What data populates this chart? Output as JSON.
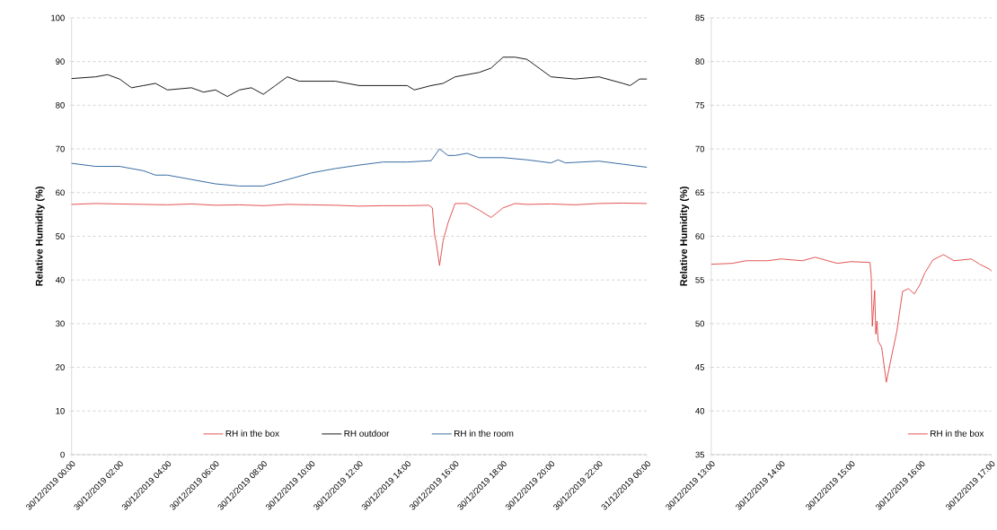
{
  "chart_data": [
    {
      "type": "line",
      "ylabel": "Relative Humidity  (%)",
      "xlim": [
        "2019-12-30T00:00",
        "2019-12-31T00:00"
      ],
      "ylim": [
        0,
        100
      ],
      "grid": "y",
      "legend": "bottom",
      "line_style": "solid",
      "marker": "none",
      "xticks": [
        {
          "value": "2019-12-30T00:00",
          "label": "30/12/2019 00:00"
        },
        {
          "value": "2019-12-30T02:00",
          "label": "30/12/2019 02:00"
        },
        {
          "value": "2019-12-30T04:00",
          "label": "30/12/2019 04:00"
        },
        {
          "value": "2019-12-30T06:00",
          "label": "30/12/2019 06:00"
        },
        {
          "value": "2019-12-30T08:00",
          "label": "30/12/2019 08:00"
        },
        {
          "value": "2019-12-30T10:00",
          "label": "30/12/2019 10:00"
        },
        {
          "value": "2019-12-30T12:00",
          "label": "30/12/2019 12:00"
        },
        {
          "value": "2019-12-30T14:00",
          "label": "30/12/2019 14:00"
        },
        {
          "value": "2019-12-30T16:00",
          "label": "30/12/2019 16:00"
        },
        {
          "value": "2019-12-30T18:00",
          "label": "30/12/2019 18:00"
        },
        {
          "value": "2019-12-30T20:00",
          "label": "30/12/2019 20:00"
        },
        {
          "value": "2019-12-30T22:00",
          "label": "30/12/2019 22:00"
        },
        {
          "value": "2019-12-31T00:00",
          "label": "31/12/2019 00:00"
        }
      ],
      "yticks": [
        0,
        10,
        20,
        30,
        40,
        50,
        60,
        70,
        80,
        90,
        100
      ],
      "series": [
        {
          "name": "RH in the box",
          "color": "#e04040",
          "x": [
            "2019-12-30T00:00",
            "2019-12-30T01:00",
            "2019-12-30T02:00",
            "2019-12-30T03:00",
            "2019-12-30T04:00",
            "2019-12-30T05:00",
            "2019-12-30T06:00",
            "2019-12-30T07:00",
            "2019-12-30T08:00",
            "2019-12-30T09:00",
            "2019-12-30T10:00",
            "2019-12-30T11:00",
            "2019-12-30T12:00",
            "2019-12-30T13:00",
            "2019-12-30T14:00",
            "2019-12-30T14:54",
            "2019-12-30T15:03",
            "2019-12-30T15:09",
            "2019-12-30T15:12",
            "2019-12-30T15:21",
            "2019-12-30T15:30",
            "2019-12-30T15:42",
            "2019-12-30T16:00",
            "2019-12-30T16:30",
            "2019-12-30T17:00",
            "2019-12-30T17:30",
            "2019-12-30T18:00",
            "2019-12-30T18:30",
            "2019-12-30T19:00",
            "2019-12-30T20:00",
            "2019-12-30T21:00",
            "2019-12-30T22:00",
            "2019-12-30T23:00",
            "2019-12-31T00:00"
          ],
          "values": [
            57.3,
            57.5,
            57.4,
            57.3,
            57.2,
            57.4,
            57.1,
            57.2,
            57.0,
            57.3,
            57.2,
            57.1,
            56.9,
            57.0,
            57.0,
            57.1,
            56.5,
            50,
            49,
            43.3,
            49,
            53,
            57.5,
            57.5,
            56,
            54.3,
            56.5,
            57.5,
            57.3,
            57.4,
            57.2,
            57.5,
            57.6,
            57.5
          ]
        },
        {
          "name": "RH outdoor",
          "color": "#000000",
          "x": [
            "2019-12-30T00:00",
            "2019-12-30T01:00",
            "2019-12-30T01:30",
            "2019-12-30T02:00",
            "2019-12-30T02:30",
            "2019-12-30T03:00",
            "2019-12-30T03:30",
            "2019-12-30T04:00",
            "2019-12-30T05:00",
            "2019-12-30T05:30",
            "2019-12-30T06:00",
            "2019-12-30T06:30",
            "2019-12-30T07:00",
            "2019-12-30T07:30",
            "2019-12-30T08:00",
            "2019-12-30T08:30",
            "2019-12-30T09:00",
            "2019-12-30T09:30",
            "2019-12-30T10:00",
            "2019-12-30T11:00",
            "2019-12-30T12:00",
            "2019-12-30T13:00",
            "2019-12-30T14:00",
            "2019-12-30T14:18",
            "2019-12-30T15:00",
            "2019-12-30T15:30",
            "2019-12-30T16:00",
            "2019-12-30T17:00",
            "2019-12-30T17:30",
            "2019-12-30T18:00",
            "2019-12-30T18:30",
            "2019-12-30T19:00",
            "2019-12-30T19:30",
            "2019-12-30T20:00",
            "2019-12-30T21:00",
            "2019-12-30T22:00",
            "2019-12-30T23:00",
            "2019-12-30T23:18",
            "2019-12-30T23:42",
            "2019-12-31T00:00"
          ],
          "values": [
            86.1,
            86.5,
            87,
            86,
            84,
            84.5,
            85,
            83.5,
            84,
            83,
            83.5,
            82,
            83.5,
            84,
            82.5,
            84.5,
            86.5,
            85.5,
            85.5,
            85.5,
            84.5,
            84.5,
            84.5,
            83.5,
            84.5,
            85,
            86.5,
            87.5,
            88.5,
            91,
            91,
            90.5,
            88.5,
            86.5,
            86,
            86.5,
            85,
            84.5,
            86,
            86
          ]
        },
        {
          "name": "RH in the room",
          "color": "#1f5a96",
          "x": [
            "2019-12-30T00:00",
            "2019-12-30T01:00",
            "2019-12-30T02:00",
            "2019-12-30T03:00",
            "2019-12-30T03:30",
            "2019-12-30T04:00",
            "2019-12-30T05:00",
            "2019-12-30T06:00",
            "2019-12-30T07:00",
            "2019-12-30T08:00",
            "2019-12-30T08:42",
            "2019-12-30T10:00",
            "2019-12-30T11:00",
            "2019-12-30T12:00",
            "2019-12-30T13:00",
            "2019-12-30T14:00",
            "2019-12-30T15:00",
            "2019-12-30T15:21",
            "2019-12-30T15:42",
            "2019-12-30T16:00",
            "2019-12-30T16:30",
            "2019-12-30T17:00",
            "2019-12-30T18:00",
            "2019-12-30T19:00",
            "2019-12-30T20:00",
            "2019-12-30T20:18",
            "2019-12-30T20:36",
            "2019-12-30T22:00",
            "2019-12-30T23:00",
            "2019-12-31T00:00"
          ],
          "values": [
            66.7,
            66,
            66,
            65,
            64,
            64,
            63,
            62,
            61.5,
            61.5,
            62.5,
            64.5,
            65.5,
            66.3,
            67,
            67,
            67.3,
            70,
            68.5,
            68.5,
            69,
            68,
            68,
            67.5,
            66.8,
            67.5,
            66.8,
            67.2,
            66.5,
            65.8
          ]
        }
      ]
    },
    {
      "type": "line",
      "ylabel": "Relative Humidity  (%)",
      "xlim": [
        "2019-12-30T13:00",
        "2019-12-30T17:00"
      ],
      "ylim": [
        35,
        85
      ],
      "grid": "y",
      "legend": "bottom right",
      "line_style": "solid",
      "marker": "none",
      "xticks": [
        {
          "value": "2019-12-30T13:00",
          "label": "30/12/2019 13:00"
        },
        {
          "value": "2019-12-30T14:00",
          "label": "30/12/2019 14:00"
        },
        {
          "value": "2019-12-30T15:00",
          "label": "30/12/2019 15:00"
        },
        {
          "value": "2019-12-30T16:00",
          "label": "30/12/2019 16:00"
        },
        {
          "value": "2019-12-30T17:00",
          "label": "30/12/2019 17:00"
        }
      ],
      "yticks": [
        35,
        40,
        45,
        50,
        55,
        60,
        65,
        70,
        75,
        80,
        85
      ],
      "series": [
        {
          "name": "RH in the box",
          "color": "#e04040",
          "x": [
            "2019-12-30T13:00",
            "2019-12-30T13:18",
            "2019-12-30T13:30",
            "2019-12-30T13:48",
            "2019-12-30T14:00",
            "2019-12-30T14:18",
            "2019-12-30T14:29",
            "2019-12-30T14:48",
            "2019-12-30T15:00",
            "2019-12-30T15:16",
            "2019-12-30T15:17",
            "2019-12-30T15:18",
            "2019-12-30T15:20",
            "2019-12-30T15:21",
            "2019-12-30T15:22",
            "2019-12-30T15:23",
            "2019-12-30T15:26",
            "2019-12-30T15:30",
            "2019-12-30T15:35",
            "2019-12-30T15:39",
            "2019-12-30T15:41",
            "2019-12-30T15:44",
            "2019-12-30T15:49",
            "2019-12-30T15:54",
            "2019-12-30T15:59",
            "2019-12-30T16:03",
            "2019-12-30T16:10",
            "2019-12-30T16:19",
            "2019-12-30T16:28",
            "2019-12-30T16:43",
            "2019-12-30T16:50",
            "2019-12-30T16:59",
            "2019-12-30T17:00"
          ],
          "values": [
            56.8,
            56.9,
            57.2,
            57.2,
            57.4,
            57.2,
            57.6,
            56.9,
            57.1,
            57.0,
            55.5,
            49.7,
            53.8,
            48.8,
            50.3,
            48,
            47.3,
            43.3,
            46.6,
            49.1,
            51.0,
            53.7,
            54.0,
            53.4,
            54.5,
            55.8,
            57.3,
            57.9,
            57.2,
            57.4,
            56.8,
            56.2,
            56.0
          ]
        }
      ]
    }
  ]
}
